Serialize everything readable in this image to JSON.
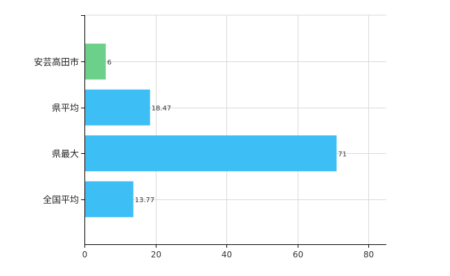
{
  "chart_data": {
    "type": "bar",
    "orientation": "horizontal",
    "categories": [
      "安芸高田市",
      "県平均",
      "県最大",
      "全国平均"
    ],
    "values": [
      6,
      18.47,
      71,
      13.77
    ],
    "value_labels": [
      "6",
      "18.47",
      "71",
      "13.77"
    ],
    "highlight_index": 0,
    "colors": {
      "highlight": "#6dd08a",
      "default": "#3dbef5",
      "grid": "#d9d9d9",
      "axis": "#000000"
    },
    "xlim": [
      0,
      85
    ],
    "xticks": [
      0,
      20,
      40,
      60,
      80
    ],
    "grid": true,
    "title": "",
    "xlabel": "",
    "ylabel": ""
  }
}
